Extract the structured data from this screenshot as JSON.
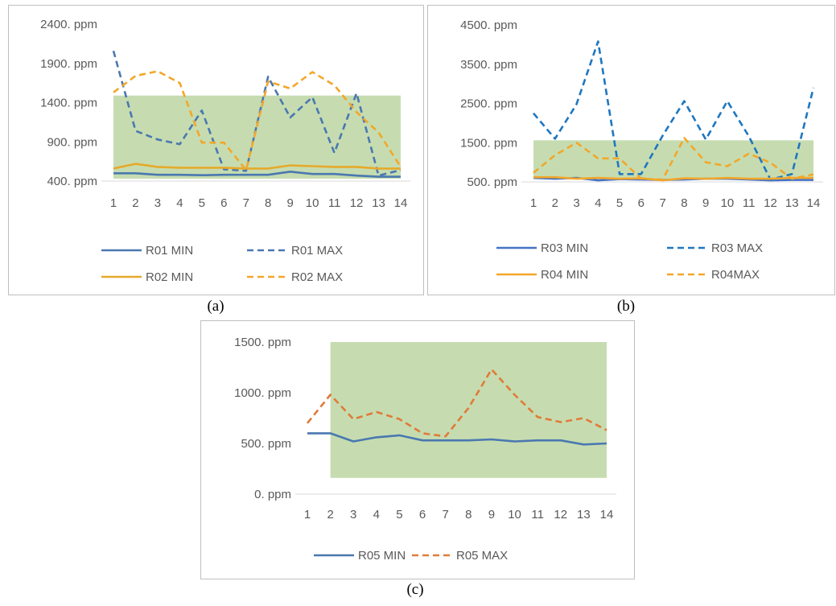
{
  "chart_data": [
    {
      "panel": "a",
      "caption": "(a)",
      "type": "line",
      "x": [
        1,
        2,
        3,
        4,
        5,
        6,
        7,
        8,
        9,
        10,
        11,
        12,
        13,
        14
      ],
      "ylim": [
        400,
        2400
      ],
      "yticks": [
        400,
        900,
        1400,
        1900,
        2400
      ],
      "ytick_labels": [
        "400. ppm",
        "900. ppm",
        "1400. ppm",
        "1900. ppm",
        "2400. ppm"
      ],
      "xtick_labels": [
        "1",
        "2",
        "3",
        "4",
        "5",
        "6",
        "7",
        "8",
        "9",
        "10",
        "11",
        "12",
        "13",
        "14"
      ],
      "grid": false,
      "legend_position": "bottom",
      "band": {
        "x_from": 1,
        "x_to": 14,
        "y_from": 430,
        "y_to": 1490,
        "color": "#c6dcb0"
      },
      "series": [
        {
          "name": "R01 MIN",
          "color": "#4a78b0",
          "dash": "solid",
          "values": [
            500,
            500,
            480,
            480,
            475,
            480,
            480,
            480,
            520,
            490,
            490,
            470,
            455,
            455
          ]
        },
        {
          "name": "R01 MAX",
          "color": "#4a78b0",
          "dash": "dashed",
          "values": [
            2060,
            1040,
            930,
            870,
            1300,
            550,
            530,
            1730,
            1210,
            1470,
            760,
            1520,
            470,
            540
          ]
        },
        {
          "name": "R02 MIN",
          "color": "#e6a92b",
          "dash": "solid",
          "values": [
            560,
            620,
            580,
            570,
            570,
            570,
            560,
            560,
            600,
            590,
            580,
            580,
            560,
            560
          ]
        },
        {
          "name": "R02 MAX",
          "color": "#f2a72a",
          "dash": "dashed",
          "values": [
            1530,
            1740,
            1800,
            1650,
            890,
            890,
            540,
            1670,
            1580,
            1790,
            1620,
            1280,
            1020,
            580
          ]
        }
      ]
    },
    {
      "panel": "b",
      "caption": "(b)",
      "type": "line",
      "x": [
        1,
        2,
        3,
        4,
        5,
        6,
        7,
        8,
        9,
        10,
        11,
        12,
        13,
        14
      ],
      "ylim": [
        500,
        4500
      ],
      "yticks": [
        500,
        1500,
        2500,
        3500,
        4500
      ],
      "ytick_labels": [
        "500. ppm",
        "1500. ppm",
        "2500. ppm",
        "3500. ppm",
        "4500. ppm"
      ],
      "xtick_labels": [
        "1",
        "2",
        "3",
        "4",
        "5",
        "6",
        "7",
        "8",
        "9",
        "10",
        "11",
        "12",
        "13",
        "14"
      ],
      "grid": false,
      "legend_position": "bottom",
      "band": {
        "x_from": 1,
        "x_to": 14,
        "y_from": 580,
        "y_to": 1560,
        "color": "#c6dcb0"
      },
      "series": [
        {
          "name": "R03 MIN",
          "color": "#4472c4",
          "dash": "solid",
          "values": [
            600,
            580,
            600,
            540,
            570,
            560,
            550,
            560,
            580,
            580,
            560,
            540,
            550,
            550
          ]
        },
        {
          "name": "R03 MAX",
          "color": "#1f77c0",
          "dash": "dashed",
          "values": [
            2250,
            1600,
            2480,
            4080,
            700,
            700,
            1680,
            2560,
            1580,
            2560,
            1660,
            560,
            700,
            2900
          ]
        },
        {
          "name": "R04 MIN",
          "color": "#f2a72a",
          "dash": "solid",
          "values": [
            620,
            620,
            580,
            600,
            580,
            590,
            540,
            590,
            580,
            600,
            580,
            580,
            600,
            600
          ]
        },
        {
          "name": "R04MAX",
          "color": "#f2a72a",
          "dash": "dashed",
          "values": [
            730,
            1180,
            1500,
            1100,
            1100,
            580,
            560,
            1620,
            1000,
            900,
            1220,
            990,
            580,
            690
          ]
        }
      ]
    },
    {
      "panel": "c",
      "caption": "(c)",
      "type": "line",
      "x": [
        1,
        2,
        3,
        4,
        5,
        6,
        7,
        8,
        9,
        10,
        11,
        12,
        13,
        14
      ],
      "ylim": [
        0,
        1500
      ],
      "yticks": [
        0,
        500,
        1000,
        1500
      ],
      "ytick_labels": [
        "0. ppm",
        "500. ppm",
        "1000. ppm",
        "1500. ppm"
      ],
      "xtick_labels": [
        "1",
        "2",
        "3",
        "4",
        "5",
        "6",
        "7",
        "8",
        "9",
        "10",
        "11",
        "12",
        "13",
        "14"
      ],
      "grid": false,
      "legend_position": "bottom",
      "band": {
        "x_from": 2,
        "x_to": 14,
        "y_from": 160,
        "y_to": 1500,
        "color": "#c6dcb0"
      },
      "series": [
        {
          "name": "R05 MIN",
          "color": "#4a78b0",
          "dash": "solid",
          "values": [
            600,
            600,
            520,
            560,
            580,
            530,
            530,
            530,
            540,
            520,
            530,
            530,
            490,
            500
          ]
        },
        {
          "name": "R05 MAX",
          "color": "#e07b39",
          "dash": "dashed",
          "values": [
            700,
            980,
            740,
            810,
            740,
            600,
            570,
            850,
            1230,
            980,
            760,
            710,
            750,
            630
          ]
        }
      ]
    }
  ]
}
